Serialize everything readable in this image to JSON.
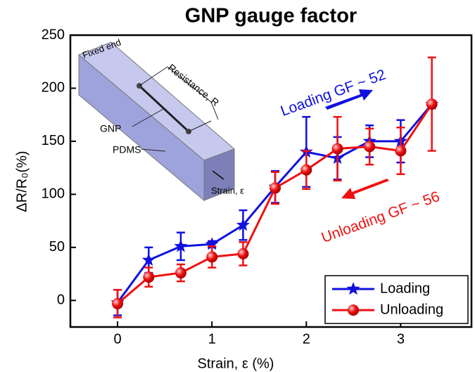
{
  "chart_data": {
    "type": "line",
    "title": "GNP gauge factor",
    "x_label": "Strain, ε (%)",
    "y_label": "ΔR/R₀(%)",
    "xlim": [
      -0.5,
      3.75
    ],
    "xticks": [
      0,
      1,
      2,
      3
    ],
    "ylim": [
      -25,
      250
    ],
    "yticks": [
      0,
      50,
      100,
      150,
      200,
      250
    ],
    "legend": "lower right",
    "series": [
      {
        "name": "Loading",
        "color": "#1010e0",
        "marker": "star",
        "x": [
          0,
          0.33,
          0.67,
          1,
          1.33,
          1.67,
          2,
          2.33,
          2.67,
          3,
          3.33
        ],
        "values": [
          -2,
          38,
          51,
          53,
          71,
          107,
          140,
          134,
          150,
          150,
          185
        ],
        "errors": [
          12,
          12,
          13,
          3,
          14,
          15,
          33,
          20,
          15,
          20,
          0
        ]
      },
      {
        "name": "Unloading",
        "color": "#ee1111",
        "marker": "sphere",
        "x": [
          0,
          0.33,
          0.67,
          1,
          1.33,
          1.67,
          2,
          2.33,
          2.67,
          3,
          3.33
        ],
        "values": [
          -3,
          22,
          26,
          41,
          44,
          106,
          123,
          143,
          145,
          141,
          185
        ],
        "errors": [
          13,
          9,
          8,
          10,
          11,
          15,
          18,
          30,
          17,
          22,
          44
        ]
      }
    ],
    "annotations": [
      {
        "text": "Loading GF ~ 52",
        "color": "#1010e0"
      },
      {
        "text": "Unloading GF ~ 56",
        "color": "#ee1111"
      }
    ],
    "inset_labels": [
      "Fixed end",
      "Resistance, R",
      "GNP",
      "PDMS",
      "Strain, ε"
    ]
  }
}
